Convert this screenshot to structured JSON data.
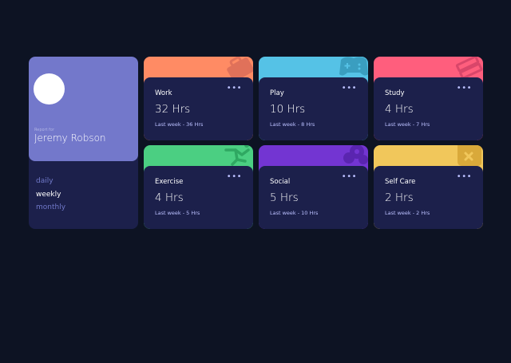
{
  "profile": {
    "report_label": "Report for",
    "name": "Jeremy Robson",
    "avatar_color": "#ffffff",
    "periods": [
      "daily",
      "weekly",
      "monthly"
    ],
    "active_period": "weekly"
  },
  "activities": [
    {
      "title": "Work",
      "current": "32 Hrs",
      "previous": "Last week - 36 Hrs",
      "color": "#ff8b64",
      "icon": "briefcase-icon"
    },
    {
      "title": "Play",
      "current": "10 Hrs",
      "previous": "Last week - 8 Hrs",
      "color": "#55c2e6",
      "icon": "gamepad-icon"
    },
    {
      "title": "Study",
      "current": "4 Hrs",
      "previous": "Last week - 7 Hrs",
      "color": "#ff5e7d",
      "icon": "books-icon"
    },
    {
      "title": "Exercise",
      "current": "4 Hrs",
      "previous": "Last week - 5 Hrs",
      "color": "#4bcf82",
      "icon": "running-icon"
    },
    {
      "title": "Social",
      "current": "5 Hrs",
      "previous": "Last week - 10 Hrs",
      "color": "#7335d2",
      "icon": "social-icon"
    },
    {
      "title": "Self Care",
      "current": "2 Hrs",
      "previous": "Last week - 2 Hrs",
      "color": "#f1c75b",
      "icon": "self-care-icon"
    }
  ],
  "menu_label": "•••",
  "colors": {
    "background": "#0d1323",
    "card": "#1c204b",
    "profile_accent": "#7378cb",
    "muted_text": "#bbc0ff",
    "period_inactive": "#7078c9"
  }
}
